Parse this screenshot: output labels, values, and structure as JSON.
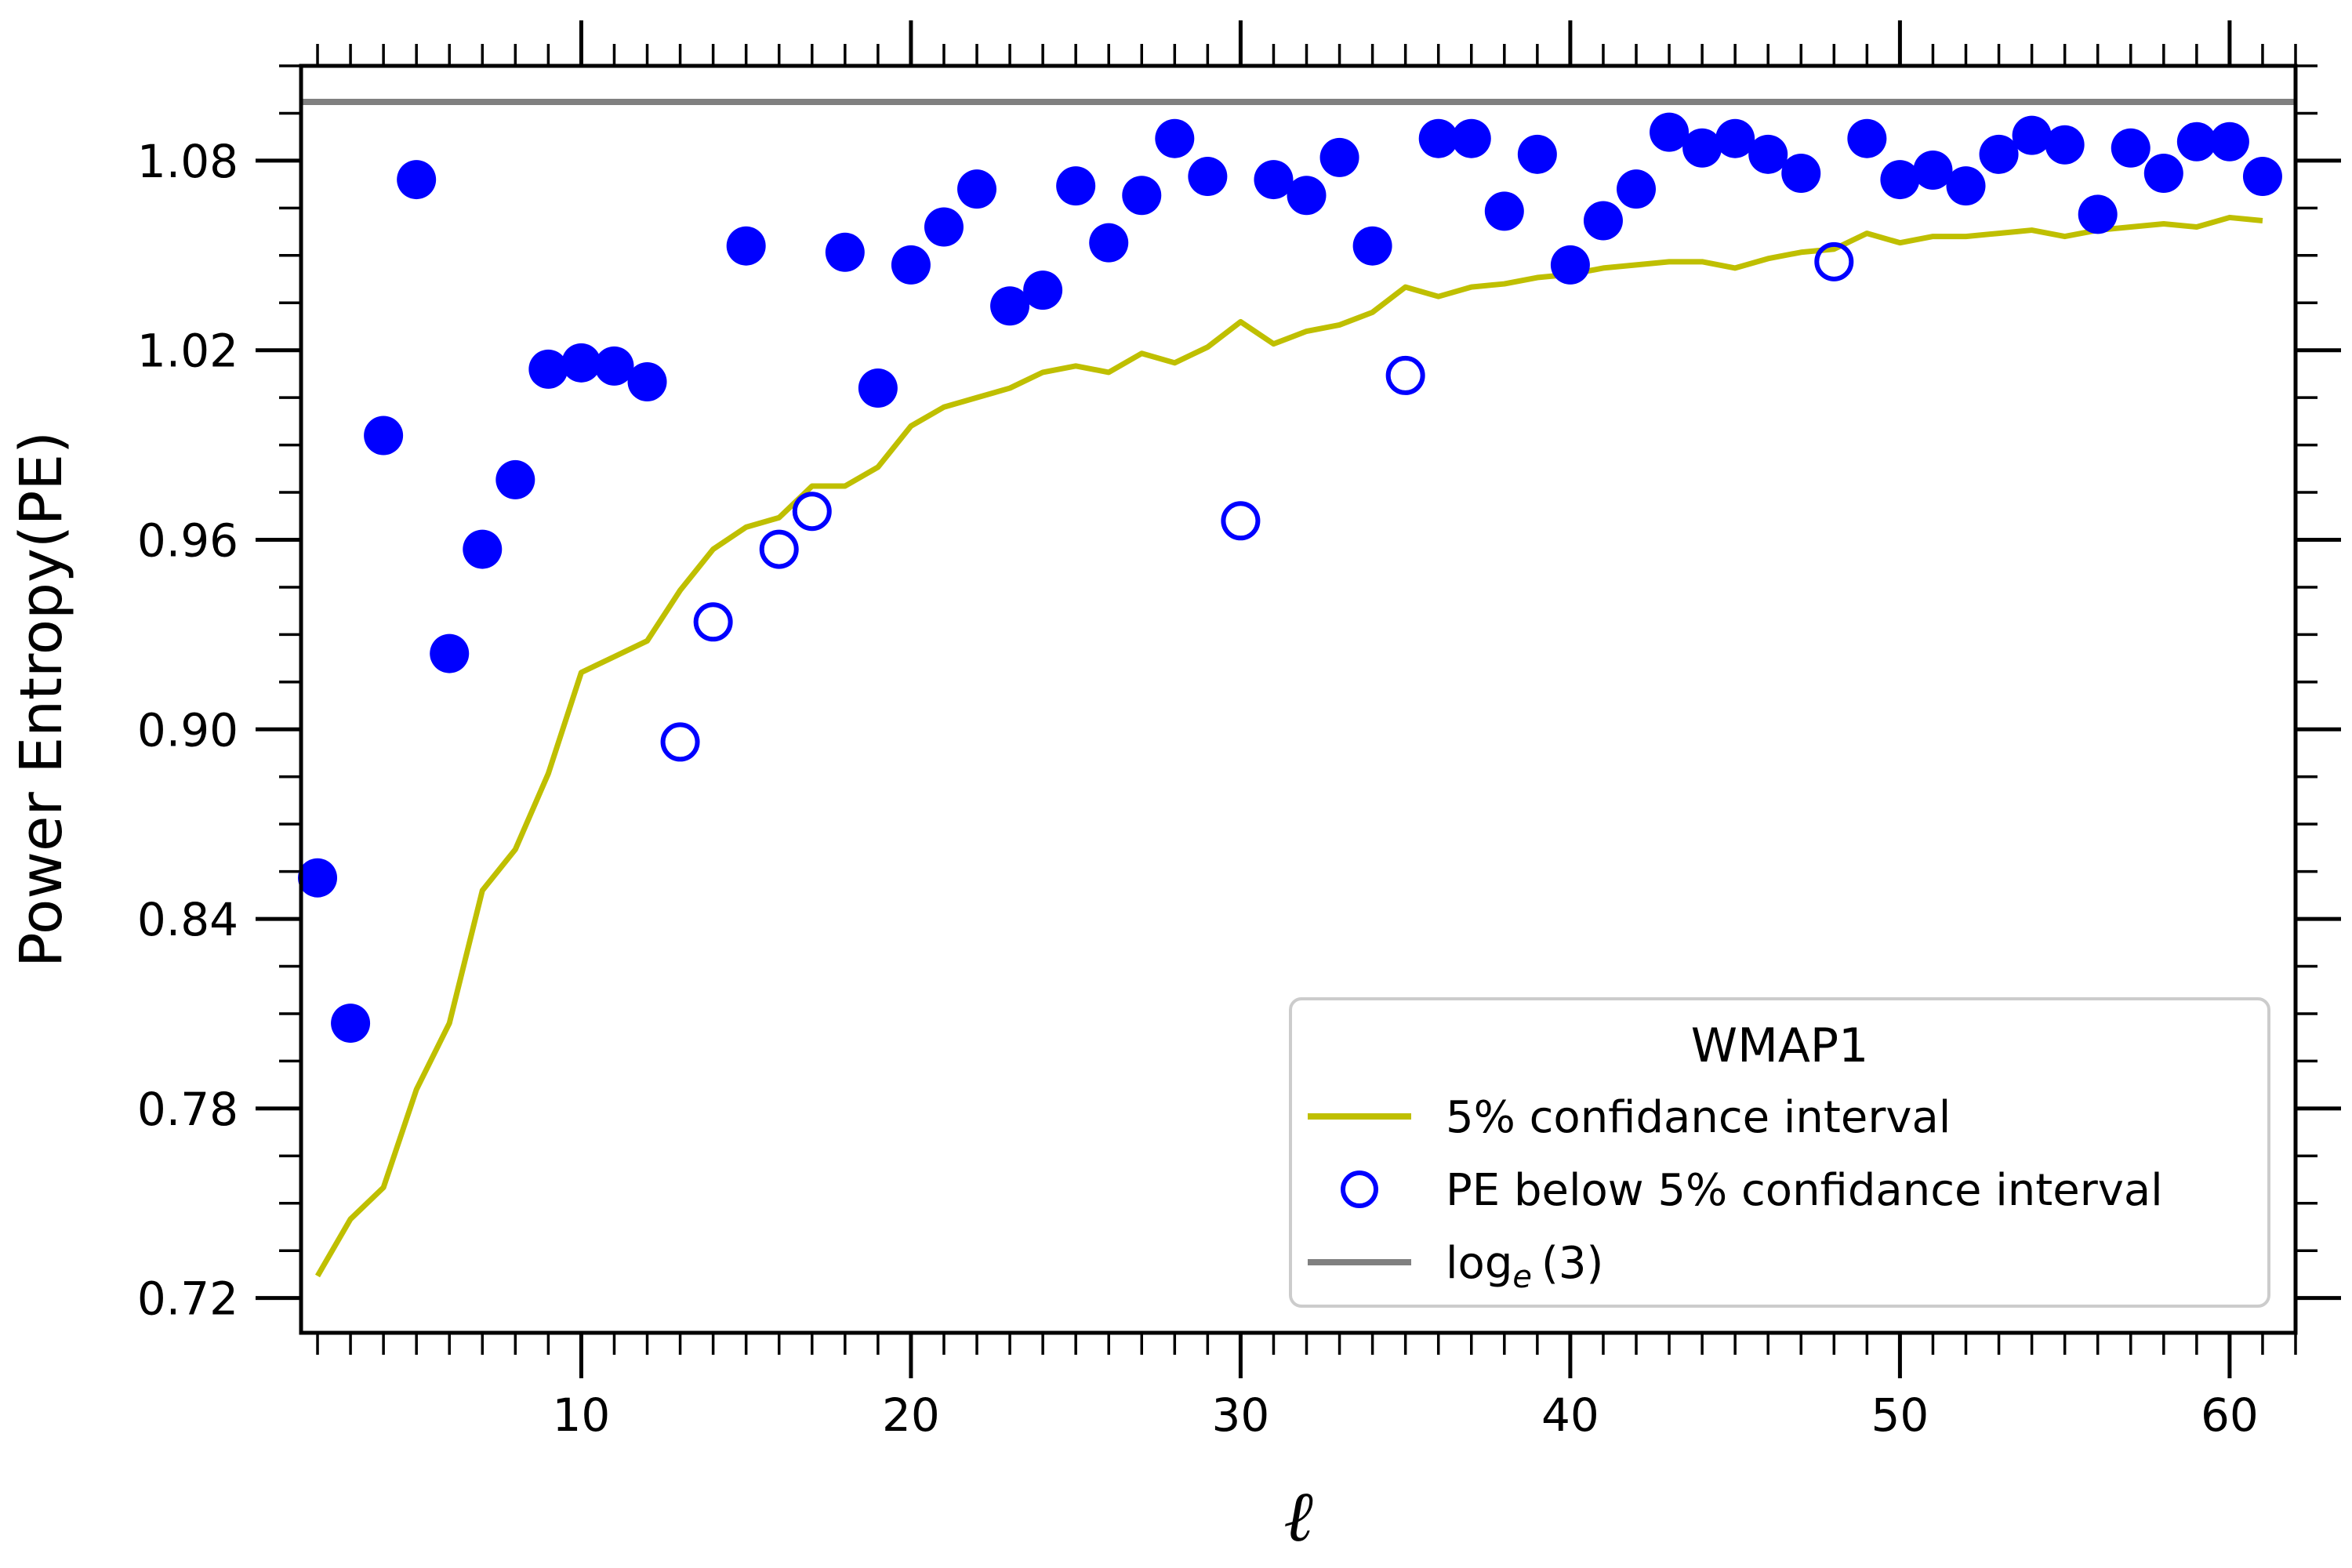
{
  "chart_data": {
    "type": "scatter",
    "title": "",
    "xlabel": "ℓ",
    "ylabel": "Power Entropy(PE)",
    "xlim": [
      1.5,
      62
    ],
    "ylim": [
      0.709,
      1.11
    ],
    "x_ticks": [
      10,
      20,
      30,
      40,
      50,
      60
    ],
    "x_tick_labels": [
      "10",
      "20",
      "30",
      "40",
      "50",
      "60"
    ],
    "y_ticks": [
      0.72,
      0.78,
      0.84,
      0.9,
      0.96,
      1.02,
      1.08
    ],
    "y_tick_labels": [
      "0.72",
      "0.78",
      "0.84",
      "0.90",
      "0.96",
      "1.02",
      "1.08"
    ],
    "colors": {
      "points": "#0000ff",
      "confidence": "#bfbf00",
      "reference": "#808080"
    },
    "legend": {
      "title": "WMAP1",
      "location": "lower-right",
      "entries": {
        "confidence": "5% confidance interval",
        "below": "PE below 5% confidance interval",
        "reference_base": "log",
        "reference_sub": "e",
        "reference_arg": "(3)"
      }
    },
    "series": [
      {
        "name": "PE",
        "style": "filled",
        "x": [
          2,
          3,
          4,
          5,
          6,
          7,
          8,
          9,
          10,
          11,
          12,
          15,
          18,
          19,
          20,
          21,
          22,
          23,
          24,
          25,
          26,
          27,
          28,
          29,
          31,
          32,
          33,
          34,
          36,
          37,
          38,
          39,
          40,
          41,
          42,
          43,
          44,
          45,
          46,
          47,
          49,
          50,
          51,
          52,
          53,
          54,
          55,
          56,
          57,
          58,
          59,
          60,
          61
        ],
        "y": [
          0.853,
          0.807,
          0.993,
          1.074,
          0.924,
          0.957,
          0.979,
          1.014,
          1.016,
          1.015,
          1.01,
          1.053,
          1.051,
          1.008,
          1.047,
          1.059,
          1.071,
          1.034,
          1.039,
          1.072,
          1.054,
          1.069,
          1.087,
          1.075,
          1.074,
          1.069,
          1.081,
          1.053,
          1.087,
          1.087,
          1.064,
          1.082,
          1.047,
          1.061,
          1.071,
          1.089,
          1.084,
          1.087,
          1.082,
          1.076,
          1.087,
          1.074,
          1.077,
          1.072,
          1.082,
          1.088,
          1.085,
          1.063,
          1.084,
          1.076,
          1.086,
          1.086,
          1.075
        ]
      },
      {
        "name": "PE below 5% confidance interval",
        "style": "open",
        "x": [
          13,
          14,
          16,
          17,
          30,
          35,
          48
        ],
        "y": [
          0.896,
          0.934,
          0.957,
          0.969,
          0.966,
          1.012,
          1.048
        ]
      },
      {
        "name": "5% confidance interval",
        "style": "line",
        "x": [
          2,
          3,
          4,
          5,
          6,
          7,
          8,
          9,
          10,
          11,
          12,
          13,
          14,
          15,
          16,
          17,
          18,
          19,
          20,
          21,
          22,
          23,
          24,
          25,
          26,
          27,
          28,
          29,
          30,
          31,
          32,
          33,
          34,
          35,
          36,
          37,
          38,
          39,
          40,
          41,
          42,
          43,
          44,
          45,
          46,
          47,
          48,
          49,
          50,
          51,
          52,
          53,
          54,
          55,
          56,
          57,
          58,
          59,
          60,
          61
        ],
        "y": [
          0.727,
          0.745,
          0.755,
          0.786,
          0.807,
          0.849,
          0.862,
          0.886,
          0.918,
          0.923,
          0.928,
          0.944,
          0.957,
          0.964,
          0.967,
          0.977,
          0.977,
          0.983,
          0.996,
          1.002,
          1.005,
          1.008,
          1.013,
          1.015,
          1.013,
          1.019,
          1.016,
          1.021,
          1.029,
          1.022,
          1.026,
          1.028,
          1.032,
          1.04,
          1.037,
          1.04,
          1.041,
          1.043,
          1.044,
          1.046,
          1.047,
          1.048,
          1.048,
          1.046,
          1.049,
          1.051,
          1.052,
          1.057,
          1.054,
          1.056,
          1.056,
          1.057,
          1.058,
          1.056,
          1.058,
          1.059,
          1.06,
          1.059,
          1.062,
          1.061
        ]
      },
      {
        "name": "log_e(3)",
        "style": "hline",
        "y": 1.0986
      }
    ]
  }
}
